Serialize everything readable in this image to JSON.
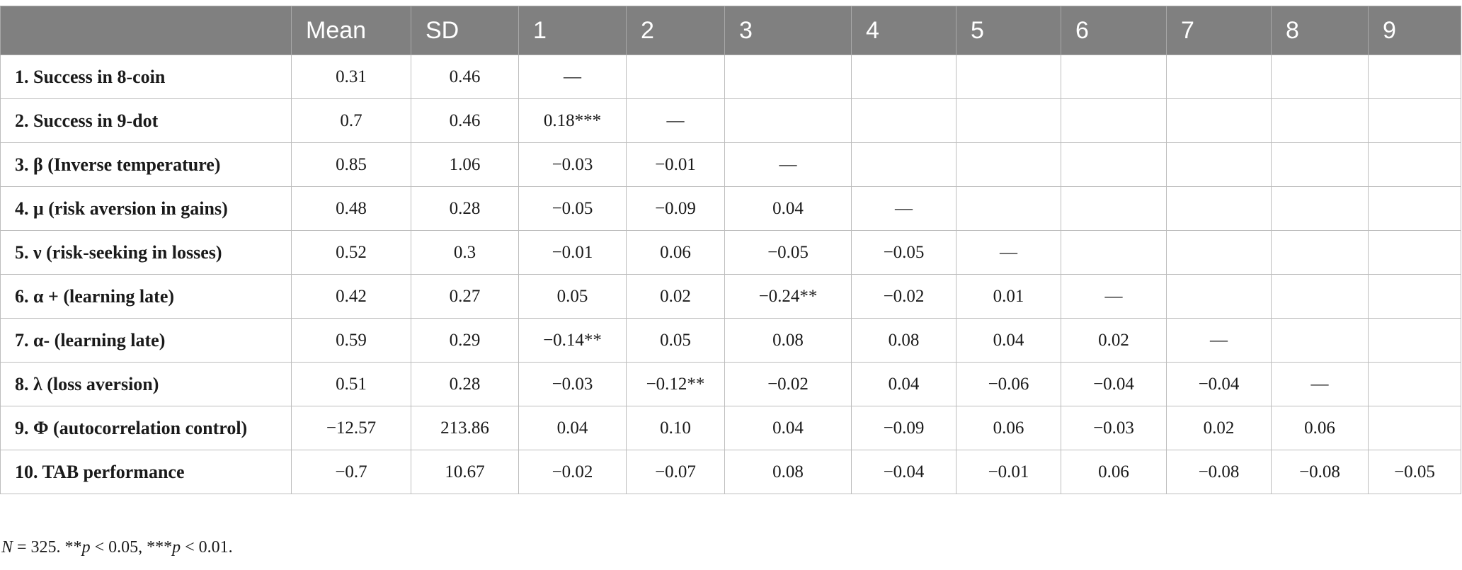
{
  "table": {
    "headers": [
      "",
      "Mean",
      "SD",
      "1",
      "2",
      "3",
      "4",
      "5",
      "6",
      "7",
      "8",
      "9"
    ],
    "rows": [
      [
        "1. Success in 8-coin",
        "0.31",
        "0.46",
        "—",
        "",
        "",
        "",
        "",
        "",
        "",
        "",
        ""
      ],
      [
        "2. Success in 9-dot",
        "0.7",
        "0.46",
        "0.18***",
        "—",
        "",
        "",
        "",
        "",
        "",
        "",
        ""
      ],
      [
        "3. β (Inverse temperature)",
        "0.85",
        "1.06",
        "−0.03",
        "−0.01",
        "—",
        "",
        "",
        "",
        "",
        "",
        ""
      ],
      [
        "4. μ (risk aversion in gains)",
        "0.48",
        "0.28",
        "−0.05",
        "−0.09",
        "0.04",
        "—",
        "",
        "",
        "",
        "",
        ""
      ],
      [
        "5. ν (risk-seeking in losses)",
        "0.52",
        "0.3",
        "−0.01",
        "0.06",
        "−0.05",
        "−0.05",
        "—",
        "",
        "",
        "",
        ""
      ],
      [
        "6. α + (learning late)",
        "0.42",
        "0.27",
        "0.05",
        "0.02",
        "−0.24**",
        "−0.02",
        "0.01",
        "—",
        "",
        "",
        ""
      ],
      [
        "7. α- (learning late)",
        "0.59",
        "0.29",
        "−0.14**",
        "0.05",
        "0.08",
        "0.08",
        "0.04",
        "0.02",
        "—",
        "",
        ""
      ],
      [
        "8. λ (loss aversion)",
        "0.51",
        "0.28",
        "−0.03",
        "−0.12**",
        "−0.02",
        "0.04",
        "−0.06",
        "−0.04",
        "−0.04",
        "—",
        ""
      ],
      [
        "9. Φ (autocorrelation control)",
        "−12.57",
        "213.86",
        "0.04",
        "0.10",
        "0.04",
        "−0.09",
        "0.06",
        "−0.03",
        "0.02",
        "0.06",
        ""
      ],
      [
        "10. TAB performance",
        "−0.7",
        "10.67",
        "−0.02",
        "−0.07",
        "0.08",
        "−0.04",
        "−0.01",
        "0.06",
        "−0.08",
        "−0.08",
        "−0.05"
      ]
    ]
  },
  "footnote": {
    "n_var": "N",
    "n_text": " = 325. **",
    "p1_var": "p",
    "p1_text": " < 0.05, ***",
    "p2_var": "p",
    "p2_text": " < 0.01."
  }
}
